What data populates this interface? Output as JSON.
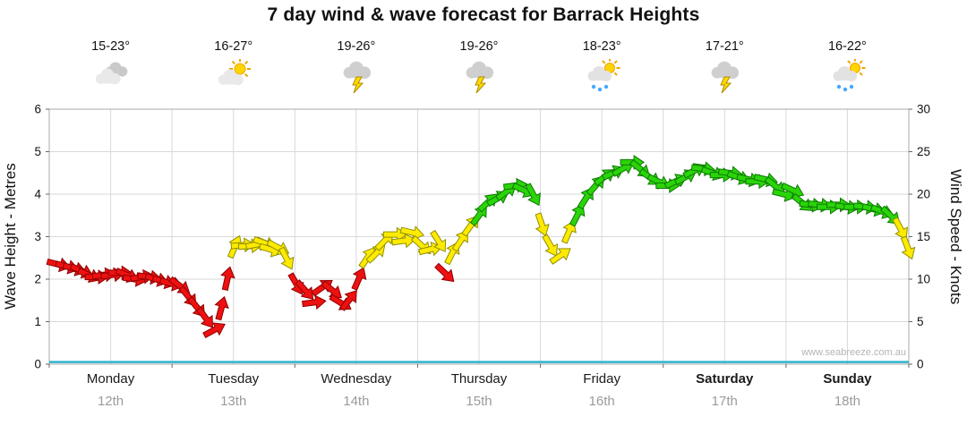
{
  "title": "7 day wind & wave forecast for Barrack Heights",
  "watermark": "www.seabreeze.com.au",
  "days": [
    {
      "name": "Monday",
      "date": "12th",
      "temp": "15-23°",
      "icon": "cloudy",
      "bold": false
    },
    {
      "name": "Tuesday",
      "date": "13th",
      "temp": "16-27°",
      "icon": "partly-cloudy",
      "bold": false
    },
    {
      "name": "Wednesday",
      "date": "14th",
      "temp": "19-26°",
      "icon": "thunderstorm",
      "bold": false
    },
    {
      "name": "Thursday",
      "date": "15th",
      "temp": "19-26°",
      "icon": "thunderstorm",
      "bold": false
    },
    {
      "name": "Friday",
      "date": "16th",
      "temp": "18-23°",
      "icon": "sun-showers",
      "bold": false
    },
    {
      "name": "Saturday",
      "date": "17th",
      "temp": "17-21°",
      "icon": "thunderstorm",
      "bold": true
    },
    {
      "name": "Sunday",
      "date": "18th",
      "temp": "16-22°",
      "icon": "sun-showers",
      "bold": true
    }
  ],
  "chart_data": {
    "type": "line",
    "subtype": "wind-arrow-chain-with-wave-line",
    "left_axis": {
      "label": "Wave Height - Metres",
      "min": 0,
      "max": 6,
      "ticks": [
        0,
        1,
        2,
        3,
        4,
        5,
        6
      ]
    },
    "right_axis": {
      "label": "Wind Speed - Knots",
      "min": 0,
      "max": 30,
      "ticks": [
        0,
        5,
        10,
        15,
        20,
        25,
        30
      ]
    },
    "x_categories": [
      "Monday",
      "Tuesday",
      "Wednesday",
      "Thursday",
      "Friday",
      "Saturday",
      "Sunday"
    ],
    "grid": {
      "vertical_per_day": 2,
      "horizontal_every_metre": 1
    },
    "colors": {
      "low": "#ee1111",
      "medium": "#ffea00",
      "high": "#2bd40a",
      "low_stroke": "#8f0000",
      "medium_stroke": "#8f8f00",
      "high_stroke": "#0c7a00",
      "wave_line": "#2fb3cf",
      "grid": "#d9d9d9",
      "border": "#a8a8a8"
    },
    "color_thresholds_knots": {
      "medium_min": 12.0,
      "high_min": 17.0
    },
    "wave_series": {
      "name": "Wave Height",
      "units": "metres",
      "approx_constant": 0.05
    },
    "wind_series": {
      "name": "Wind Speed",
      "units": "knots",
      "x_units": "day (0 = Monday 00:00)",
      "points": [
        [
          0.07,
          11.75
        ],
        [
          0.14,
          11.5
        ],
        [
          0.2,
          11.25
        ],
        [
          0.26,
          11.0
        ],
        [
          0.32,
          10.5
        ],
        [
          0.38,
          10.25
        ],
        [
          0.44,
          10.5
        ],
        [
          0.51,
          10.5
        ],
        [
          0.57,
          10.75
        ],
        [
          0.63,
          10.5
        ],
        [
          0.69,
          10.0
        ],
        [
          0.75,
          10.25
        ],
        [
          0.81,
          10.25
        ],
        [
          0.87,
          10.0
        ],
        [
          0.93,
          9.75
        ],
        [
          0.99,
          9.5
        ],
        [
          1.06,
          9.25
        ],
        [
          1.13,
          8.0
        ],
        [
          1.2,
          6.75
        ],
        [
          1.27,
          5.5
        ],
        [
          1.34,
          4.0
        ],
        [
          1.4,
          6.5
        ],
        [
          1.45,
          10.0
        ],
        [
          1.51,
          13.75
        ],
        [
          1.57,
          14.0
        ],
        [
          1.63,
          13.9
        ],
        [
          1.69,
          14.1
        ],
        [
          1.75,
          14.25
        ],
        [
          1.8,
          13.5
        ],
        [
          1.86,
          13.75
        ],
        [
          1.93,
          12.5
        ],
        [
          2.01,
          9.5
        ],
        [
          2.08,
          8.75
        ],
        [
          2.15,
          7.25
        ],
        [
          2.22,
          9.0
        ],
        [
          2.3,
          8.75
        ],
        [
          2.37,
          7.25
        ],
        [
          2.44,
          7.5
        ],
        [
          2.52,
          10.0
        ],
        [
          2.59,
          12.5
        ],
        [
          2.66,
          13.0
        ],
        [
          2.73,
          14.5
        ],
        [
          2.81,
          15.25
        ],
        [
          2.88,
          14.5
        ],
        [
          2.95,
          15.5
        ],
        [
          3.03,
          14.0
        ],
        [
          3.1,
          13.5
        ],
        [
          3.17,
          14.5
        ],
        [
          3.22,
          10.75
        ],
        [
          3.28,
          13.0
        ],
        [
          3.35,
          14.5
        ],
        [
          3.43,
          16.25
        ],
        [
          3.5,
          17.5
        ],
        [
          3.57,
          19.0
        ],
        [
          3.65,
          19.5
        ],
        [
          3.72,
          20.25
        ],
        [
          3.79,
          21.0
        ],
        [
          3.86,
          20.5
        ],
        [
          3.94,
          20.0
        ],
        [
          4.01,
          16.5
        ],
        [
          4.08,
          14.0
        ],
        [
          4.16,
          12.75
        ],
        [
          4.23,
          15.5
        ],
        [
          4.3,
          17.5
        ],
        [
          4.37,
          19.5
        ],
        [
          4.45,
          21.0
        ],
        [
          4.52,
          22.0
        ],
        [
          4.59,
          22.5
        ],
        [
          4.67,
          23.0
        ],
        [
          4.74,
          23.75
        ],
        [
          4.81,
          23.0
        ],
        [
          4.89,
          22.0
        ],
        [
          4.96,
          21.5
        ],
        [
          5.03,
          21.0
        ],
        [
          5.1,
          21.5
        ],
        [
          5.18,
          22.0
        ],
        [
          5.25,
          22.75
        ],
        [
          5.32,
          23.0
        ],
        [
          5.4,
          22.5
        ],
        [
          5.47,
          22.25
        ],
        [
          5.54,
          22.5
        ],
        [
          5.61,
          22.0
        ],
        [
          5.69,
          21.75
        ],
        [
          5.76,
          21.5
        ],
        [
          5.83,
          21.75
        ],
        [
          5.91,
          21.0
        ],
        [
          5.98,
          20.0
        ],
        [
          6.05,
          20.5
        ],
        [
          6.13,
          19.0
        ],
        [
          6.2,
          18.75
        ],
        [
          6.27,
          18.75
        ],
        [
          6.34,
          18.5
        ],
        [
          6.42,
          18.75
        ],
        [
          6.49,
          18.5
        ],
        [
          6.56,
          18.5
        ],
        [
          6.64,
          18.5
        ],
        [
          6.71,
          18.25
        ],
        [
          6.78,
          18.0
        ],
        [
          6.85,
          17.5
        ],
        [
          6.93,
          16.0
        ],
        [
          6.99,
          13.75
        ]
      ]
    }
  }
}
